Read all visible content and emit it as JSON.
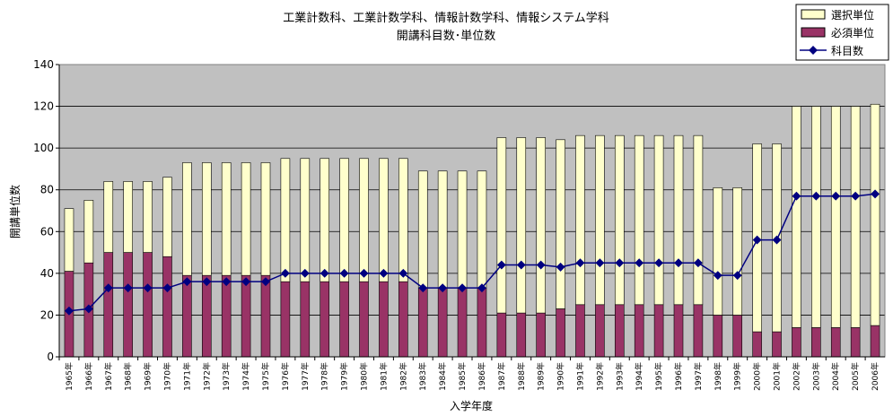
{
  "chart_data": {
    "type": "bar",
    "title_line1": "工業計数科、工業計数学科、情報計数学科、情報システム学科",
    "title_line2": "開講科目数･単位数",
    "xlabel": "入学年度",
    "ylabel": "開講単位数",
    "ylim": [
      0,
      140
    ],
    "yticks": [
      0,
      20,
      40,
      60,
      80,
      100,
      120,
      140
    ],
    "grid": true,
    "legend_position": "top-right",
    "categories": [
      "1965年",
      "1966年",
      "1967年",
      "1968年",
      "1969年",
      "1970年",
      "1971年",
      "1972年",
      "1973年",
      "1974年",
      "1975年",
      "1976年",
      "1977年",
      "1978年",
      "1979年",
      "1980年",
      "1981年",
      "1982年",
      "1983年",
      "1984年",
      "1985年",
      "1986年",
      "1987年",
      "1988年",
      "1989年",
      "1990年",
      "1991年",
      "1992年",
      "1993年",
      "1994年",
      "1995年",
      "1996年",
      "1997年",
      "1998年",
      "1999年",
      "2000年",
      "2001年",
      "2002年",
      "2003年",
      "2004年",
      "2005年",
      "2006年"
    ],
    "series": [
      {
        "name": "選択単位",
        "kind": "stacked-bar",
        "color": "#ffffcc",
        "values": [
          30,
          30,
          34,
          34,
          34,
          38,
          54,
          54,
          54,
          54,
          54,
          59,
          59,
          59,
          59,
          59,
          59,
          59,
          56,
          56,
          56,
          56,
          84,
          84,
          84,
          81,
          81,
          81,
          81,
          81,
          81,
          81,
          81,
          61,
          61,
          90,
          90,
          106,
          106,
          106,
          106,
          106
        ]
      },
      {
        "name": "必須単位",
        "kind": "stacked-bar",
        "color": "#993366",
        "values": [
          41,
          45,
          50,
          50,
          50,
          48,
          39,
          39,
          39,
          39,
          39,
          36,
          36,
          36,
          36,
          36,
          36,
          36,
          33,
          33,
          33,
          33,
          21,
          21,
          21,
          23,
          25,
          25,
          25,
          25,
          25,
          25,
          25,
          20,
          20,
          12,
          12,
          14,
          14,
          14,
          14,
          15
        ]
      },
      {
        "name": "科目数",
        "kind": "line",
        "color": "#000080",
        "values": [
          22,
          23,
          33,
          33,
          33,
          33,
          36,
          36,
          36,
          36,
          36,
          40,
          40,
          40,
          40,
          40,
          40,
          40,
          33,
          33,
          33,
          33,
          44,
          44,
          44,
          43,
          45,
          45,
          45,
          45,
          45,
          45,
          45,
          39,
          39,
          56,
          56,
          77,
          77,
          77,
          77,
          78
        ]
      }
    ],
    "colors": {
      "plot_background": "#c0c0c0",
      "grid": "#000000",
      "bar_border": "#000000"
    }
  }
}
